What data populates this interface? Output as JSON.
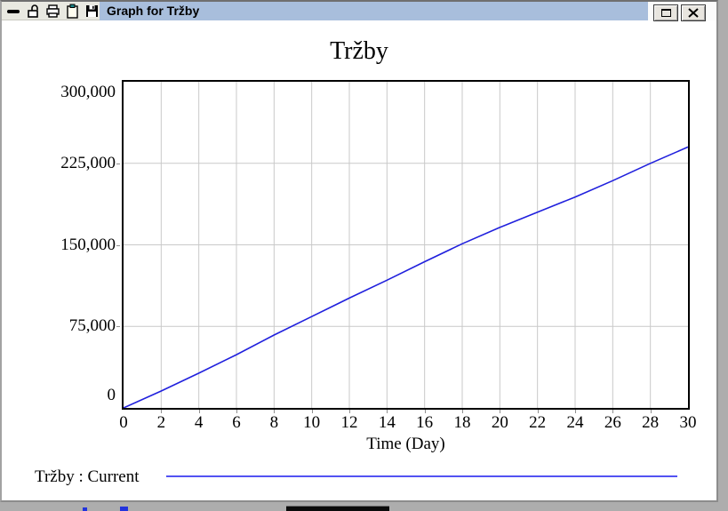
{
  "window": {
    "title": "Graph for Tržby",
    "tool_icon_names": [
      "hide-bar-icon",
      "unlock-icon",
      "print-icon",
      "clipboard-icon",
      "save-icon"
    ],
    "button_names": [
      "maximize-button",
      "close-button"
    ]
  },
  "chart_data": {
    "type": "line",
    "title": "Tržby",
    "xlabel": "Time (Day)",
    "ylabel": "",
    "xlim": [
      0,
      30
    ],
    "ylim": [
      0,
      300000
    ],
    "xticks": [
      0,
      2,
      4,
      6,
      8,
      10,
      12,
      14,
      16,
      18,
      20,
      22,
      24,
      26,
      28,
      30
    ],
    "yticks": [
      0,
      75000,
      150000,
      225000,
      300000
    ],
    "ytick_labels": [
      "0",
      "75,000",
      "150,000",
      "225,000",
      "300,000"
    ],
    "grid": true,
    "legend_position": "bottom-left",
    "x": [
      0,
      2,
      4,
      6,
      8,
      10,
      12,
      14,
      16,
      18,
      20,
      22,
      24,
      26,
      28,
      30
    ],
    "series": [
      {
        "name": "Tržby : Current",
        "color": "#2020dd",
        "values": [
          0,
          15500,
          32000,
          49000,
          67000,
          84000,
          101000,
          117500,
          134500,
          151000,
          166000,
          180000,
          194000,
          209000,
          225000,
          240000
        ]
      }
    ]
  },
  "colors": {
    "titlebar_blue": "#a8bedc",
    "tools_strip_bg": "#e9e9e1",
    "grid": "#c9c9c9",
    "plot_line": "#2020dd",
    "legend_line": "#5353f2",
    "desktop_gray": "#adadad",
    "clipboard_clip_teal": "#1b8688"
  }
}
